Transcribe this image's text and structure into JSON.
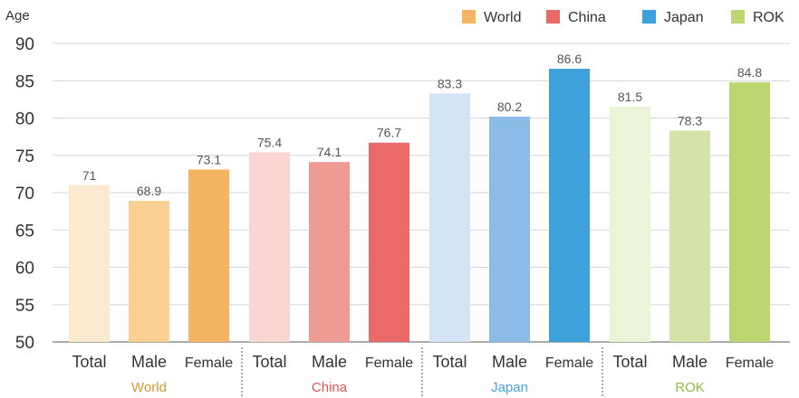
{
  "chart_data": {
    "type": "bar",
    "ylabel": "Age",
    "ylim": [
      50,
      90
    ],
    "yticks": [
      50,
      55,
      60,
      65,
      70,
      75,
      80,
      85,
      90
    ],
    "grid": true,
    "legend_position": "top-right",
    "legend": [
      {
        "name": "World",
        "color": "#F5B461"
      },
      {
        "name": "China",
        "color": "#EA6A6A"
      },
      {
        "name": "Japan",
        "color": "#3EA1DC"
      },
      {
        "name": "ROK",
        "color": "#BCD672"
      }
    ],
    "groups": [
      {
        "name": "World",
        "label_color": "#D9962F",
        "categories": [
          "Total",
          "Male",
          "Female"
        ],
        "values": [
          71,
          68.9,
          73.1
        ],
        "value_labels": [
          "71",
          "68.9",
          "73.1"
        ],
        "colors": [
          "#FBE9D0",
          "#F9CF92",
          "#F5B461"
        ]
      },
      {
        "name": "China",
        "label_color": "#E25555",
        "categories": [
          "Total",
          "Male",
          "Female"
        ],
        "values": [
          75.4,
          74.1,
          76.7
        ],
        "value_labels": [
          "75.4",
          "74.1",
          "76.7"
        ],
        "colors": [
          "#F9D6D1",
          "#F09A94",
          "#EA6A6A"
        ]
      },
      {
        "name": "Japan",
        "label_color": "#4AA3DA",
        "categories": [
          "Total",
          "Male",
          "Female"
        ],
        "values": [
          83.3,
          80.2,
          86.6
        ],
        "value_labels": [
          "83.3",
          "80.2",
          "86.6"
        ],
        "colors": [
          "#D3E4F5",
          "#8ABCE7",
          "#3EA1DC"
        ]
      },
      {
        "name": "ROK",
        "label_color": "#96B847",
        "categories": [
          "Total",
          "Male",
          "Female"
        ],
        "values": [
          81.5,
          78.3,
          84.8
        ],
        "value_labels": [
          "81.5",
          "78.3",
          "84.8"
        ],
        "colors": [
          "#EBF3D8",
          "#D4E4A8",
          "#BCD672"
        ]
      }
    ]
  }
}
